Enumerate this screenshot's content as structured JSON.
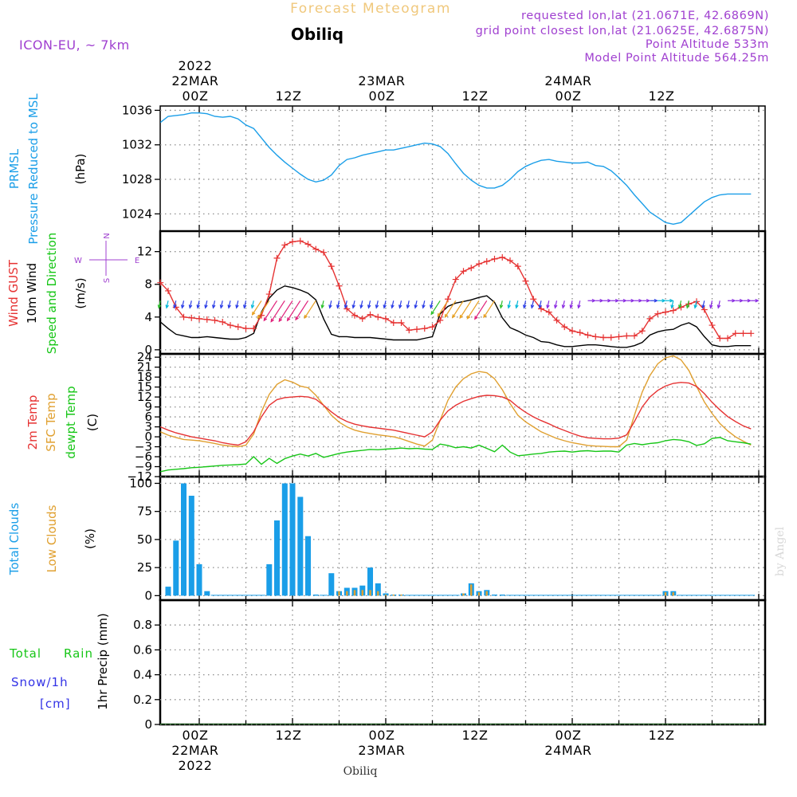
{
  "header": {
    "title": "Forecast Meteogram",
    "location": "Obiliq",
    "model": "ICON-EU, ~ 7km",
    "requested": "requested lon,lat (21.0671E, 42.6869N)",
    "grid_point": "grid point closest lon,lat (21.0625E, 42.6875N)",
    "point_altitude": "Point Altitude 533m",
    "model_altitude": "Model Point Altitude 564.25m",
    "footer_location": "Obiliq",
    "credit": "by Angel"
  },
  "colors": {
    "pressure": "#1a9ee8",
    "gust": "#e63232",
    "wind": "#000000",
    "t2m": "#e63232",
    "sfc": "#e0a030",
    "dewpt": "#17c617",
    "total_clouds": "#1a9ee8",
    "low_clouds": "#e0a030",
    "rain": "#17c617",
    "snow": "#3232e6",
    "title": "#f0c87c",
    "info": "#a040d0"
  },
  "time_axis": {
    "top_labels": [
      {
        "hour": 0,
        "lines": [
          "2022",
          "22MAR",
          "00Z"
        ]
      },
      {
        "hour": 12,
        "lines": [
          "12Z"
        ]
      },
      {
        "hour": 24,
        "lines": [
          "23MAR",
          "00Z"
        ]
      },
      {
        "hour": 36,
        "lines": [
          "12Z"
        ]
      },
      {
        "hour": 48,
        "lines": [
          "24MAR",
          "00Z"
        ]
      },
      {
        "hour": 60,
        "lines": [
          "12Z"
        ]
      }
    ],
    "bottom_labels": [
      {
        "hour": 0,
        "lines": [
          "00Z",
          "22MAR",
          "2022"
        ]
      },
      {
        "hour": 12,
        "lines": [
          "12Z"
        ]
      },
      {
        "hour": 24,
        "lines": [
          "00Z",
          "23MAR"
        ]
      },
      {
        "hour": 36,
        "lines": [
          "12Z"
        ]
      },
      {
        "hour": 48,
        "lines": [
          "00Z",
          "24MAR"
        ]
      },
      {
        "hour": 60,
        "lines": [
          "12Z"
        ]
      }
    ]
  },
  "panels": {
    "pressure": {
      "labels": [
        "PRMSL",
        "Pressure Reduced to MSL",
        "(hPa)"
      ]
    },
    "wind": {
      "labels": [
        "Wind GUST",
        "10m Wind",
        "Speed and Direction",
        "(m/s)"
      ],
      "compass": {
        "n": "N",
        "s": "S",
        "w": "W",
        "e": "E"
      }
    },
    "temp": {
      "labels": [
        "2m Temp",
        "SFC Temp",
        "dewpt Temp",
        "(C)"
      ]
    },
    "clouds": {
      "labels": [
        "Total Clouds",
        "Low Clouds",
        "(%)"
      ]
    },
    "precip": {
      "labels": [
        "Total",
        "Rain",
        "Snow/1h",
        "[cm]",
        "1hr Precip (mm)"
      ]
    }
  },
  "chart_data": [
    {
      "type": "line",
      "title": "PRMSL Pressure Reduced to MSL",
      "ylabel": "hPa",
      "ylim": [
        1022,
        1036.5
      ],
      "yticks": [
        1024,
        1028,
        1032,
        1036
      ],
      "x": [
        -5,
        -4,
        -3,
        -2,
        -1,
        0,
        1,
        2,
        3,
        4,
        5,
        6,
        7,
        8,
        9,
        10,
        11,
        12,
        13,
        14,
        15,
        16,
        17,
        18,
        19,
        20,
        21,
        22,
        23,
        24,
        25,
        26,
        27,
        28,
        29,
        30,
        31,
        32,
        33,
        34,
        35,
        36,
        37,
        38,
        39,
        40,
        41,
        42,
        43,
        44,
        45,
        46,
        47,
        48,
        49,
        50,
        51,
        52,
        53,
        54,
        55,
        56,
        57,
        58,
        59,
        60,
        61,
        62,
        63,
        64,
        65,
        66,
        67,
        68,
        69,
        70,
        71
      ],
      "series": [
        {
          "name": "PRMSL",
          "values": [
            1034.6,
            1035.3,
            1035.4,
            1035.5,
            1035.7,
            1035.7,
            1035.6,
            1035.3,
            1035.2,
            1035.3,
            1035.0,
            1034.3,
            1033.9,
            1032.8,
            1031.7,
            1030.8,
            1030.0,
            1029.3,
            1028.6,
            1028.0,
            1027.7,
            1027.9,
            1028.5,
            1029.6,
            1030.3,
            1030.5,
            1030.8,
            1031.0,
            1031.2,
            1031.4,
            1031.4,
            1031.6,
            1031.8,
            1032.0,
            1032.2,
            1032.1,
            1031.8,
            1031.0,
            1029.8,
            1028.7,
            1027.9,
            1027.3,
            1027.0,
            1027.0,
            1027.3,
            1028.0,
            1028.9,
            1029.5,
            1029.9,
            1030.2,
            1030.3,
            1030.1,
            1030.0,
            1029.9,
            1029.9,
            1030.0,
            1029.6,
            1029.5,
            1029.0,
            1028.2,
            1027.3,
            1026.2,
            1025.2,
            1024.2,
            1023.6,
            1023.0,
            1022.8,
            1023.0,
            1023.8,
            1024.6,
            1025.4,
            1025.9,
            1026.2,
            1026.3,
            1026.3,
            1026.3,
            1026.3
          ]
        }
      ]
    },
    {
      "type": "line",
      "title": "Wind GUST / 10m Wind Speed and Direction",
      "ylabel": "m/s",
      "ylim": [
        -0.5,
        14.5
      ],
      "yticks": [
        0,
        4,
        8,
        12
      ],
      "x": [
        -5,
        -4,
        -3,
        -2,
        -1,
        0,
        1,
        2,
        3,
        4,
        5,
        6,
        7,
        8,
        9,
        10,
        11,
        12,
        13,
        14,
        15,
        16,
        17,
        18,
        19,
        20,
        21,
        22,
        23,
        24,
        25,
        26,
        27,
        28,
        29,
        30,
        31,
        32,
        33,
        34,
        35,
        36,
        37,
        38,
        39,
        40,
        41,
        42,
        43,
        44,
        45,
        46,
        47,
        48,
        49,
        50,
        51,
        52,
        53,
        54,
        55,
        56,
        57,
        58,
        59,
        60,
        61,
        62,
        63,
        64,
        65,
        66,
        67,
        68,
        69,
        70,
        71
      ],
      "series": [
        {
          "name": "Wind GUST",
          "values": [
            8.2,
            7.2,
            5.2,
            4.0,
            3.9,
            3.8,
            3.7,
            3.6,
            3.4,
            3.0,
            2.8,
            2.6,
            2.6,
            4.2,
            6.8,
            11.2,
            12.8,
            13.2,
            13.3,
            12.9,
            12.3,
            11.9,
            10.2,
            7.8,
            5.0,
            4.2,
            3.8,
            4.3,
            4.0,
            3.8,
            3.3,
            3.3,
            2.4,
            2.5,
            2.6,
            2.8,
            3.6,
            6.2,
            8.6,
            9.6,
            10.0,
            10.5,
            10.8,
            11.1,
            11.3,
            10.9,
            10.2,
            8.4,
            6.2,
            5.0,
            4.6,
            3.6,
            2.8,
            2.3,
            2.1,
            1.8,
            1.6,
            1.5,
            1.5,
            1.6,
            1.7,
            1.7,
            2.3,
            3.8,
            4.4,
            4.6,
            4.8,
            5.2,
            5.6,
            5.9,
            4.9,
            3.0,
            1.4,
            1.4,
            2.0,
            2.0,
            2.0
          ]
        },
        {
          "name": "10m Wind",
          "values": [
            3.4,
            2.6,
            1.9,
            1.7,
            1.5,
            1.5,
            1.6,
            1.5,
            1.4,
            1.3,
            1.3,
            1.5,
            2.0,
            4.6,
            6.3,
            7.3,
            7.8,
            7.6,
            7.3,
            6.9,
            6.1,
            3.8,
            1.9,
            1.6,
            1.6,
            1.5,
            1.5,
            1.5,
            1.4,
            1.3,
            1.2,
            1.2,
            1.2,
            1.2,
            1.4,
            1.6,
            4.4,
            5.3,
            5.7,
            5.9,
            6.1,
            6.4,
            6.6,
            5.8,
            3.9,
            2.7,
            2.3,
            1.8,
            1.5,
            1.0,
            0.9,
            0.6,
            0.4,
            0.4,
            0.5,
            0.6,
            0.6,
            0.5,
            0.4,
            0.3,
            0.3,
            0.5,
            0.9,
            1.8,
            2.2,
            2.4,
            2.5,
            3.0,
            3.3,
            2.8,
            1.6,
            0.6,
            0.4,
            0.4,
            0.5,
            0.5,
            0.5
          ]
        }
      ],
      "direction_arrows": [
        {
          "series": "10m Wind",
          "note": "direction arrows plotted at y = 6 m/s"
        }
      ]
    },
    {
      "type": "line",
      "title": "2m Temp / SFC Temp / dewpt Temp",
      "ylabel": "C",
      "ylim": [
        -12,
        25
      ],
      "yticks": [
        -12,
        -9,
        -6,
        -3,
        0,
        3,
        6,
        9,
        12,
        15,
        18,
        21,
        24
      ],
      "x": [
        -5,
        -4,
        -3,
        -2,
        -1,
        0,
        1,
        2,
        3,
        4,
        5,
        6,
        7,
        8,
        9,
        10,
        11,
        12,
        13,
        14,
        15,
        16,
        17,
        18,
        19,
        20,
        21,
        22,
        23,
        24,
        25,
        26,
        27,
        28,
        29,
        30,
        31,
        32,
        33,
        34,
        35,
        36,
        37,
        38,
        39,
        40,
        41,
        42,
        43,
        44,
        45,
        46,
        47,
        48,
        49,
        50,
        51,
        52,
        53,
        54,
        55,
        56,
        57,
        58,
        59,
        60,
        61,
        62,
        63,
        64,
        65,
        66,
        67,
        68,
        69,
        70,
        71
      ],
      "series": [
        {
          "name": "2m Temp",
          "values": [
            3.0,
            2.0,
            1.2,
            0.6,
            0.0,
            -0.4,
            -0.8,
            -1.2,
            -1.8,
            -2.2,
            -2.5,
            -1.5,
            1.5,
            6.0,
            9.5,
            11.2,
            11.8,
            12.0,
            12.2,
            12.0,
            11.3,
            9.5,
            7.5,
            5.8,
            4.6,
            3.8,
            3.3,
            2.9,
            2.6,
            2.3,
            2.0,
            1.5,
            1.0,
            0.5,
            0.0,
            1.5,
            5.0,
            7.8,
            9.5,
            10.7,
            11.5,
            12.2,
            12.5,
            12.4,
            12.0,
            11.0,
            9.0,
            7.4,
            6.0,
            4.9,
            3.9,
            2.8,
            1.9,
            1.0,
            0.2,
            -0.3,
            -0.5,
            -0.6,
            -0.6,
            -0.4,
            0.6,
            4.6,
            9.0,
            12.0,
            14.0,
            15.3,
            16.1,
            16.4,
            16.2,
            15.2,
            13.0,
            10.4,
            8.1,
            6.1,
            4.6,
            3.3,
            2.4
          ]
        },
        {
          "name": "SFC Temp",
          "values": [
            1.5,
            0.5,
            -0.2,
            -0.8,
            -1.0,
            -1.2,
            -1.6,
            -2.0,
            -2.5,
            -2.8,
            -3.0,
            -2.5,
            0.8,
            7.5,
            12.8,
            15.8,
            17.2,
            16.5,
            15.3,
            14.8,
            12.5,
            9.5,
            6.5,
            4.4,
            3.0,
            2.0,
            1.4,
            1.0,
            0.6,
            0.3,
            0.0,
            -0.6,
            -1.4,
            -2.2,
            -2.8,
            -1.0,
            5.0,
            11.0,
            15.0,
            17.5,
            19.0,
            19.7,
            19.3,
            17.5,
            14.2,
            10.0,
            6.5,
            4.5,
            3.0,
            1.5,
            0.5,
            -0.5,
            -1.2,
            -1.8,
            -2.2,
            -2.6,
            -2.8,
            -2.9,
            -3.0,
            -3.0,
            -1.0,
            6.5,
            13.5,
            18.5,
            22.0,
            23.8,
            24.4,
            23.2,
            20.0,
            15.2,
            10.5,
            7.0,
            4.0,
            1.8,
            0.0,
            -1.3,
            -2.5
          ]
        },
        {
          "name": "dewpt Temp",
          "values": [
            -10.5,
            -10.0,
            -9.8,
            -9.6,
            -9.3,
            -9.2,
            -9.0,
            -8.8,
            -8.6,
            -8.5,
            -8.4,
            -8.2,
            -6.0,
            -8.3,
            -6.5,
            -8.0,
            -6.6,
            -5.8,
            -5.2,
            -5.8,
            -5.0,
            -6.2,
            -5.6,
            -5.0,
            -4.6,
            -4.3,
            -4.1,
            -3.8,
            -3.9,
            -3.7,
            -3.6,
            -3.4,
            -3.6,
            -3.5,
            -3.7,
            -3.8,
            -2.2,
            -2.6,
            -3.3,
            -3.0,
            -3.4,
            -2.5,
            -3.5,
            -4.5,
            -2.5,
            -4.6,
            -5.7,
            -5.5,
            -5.2,
            -5.0,
            -4.6,
            -4.4,
            -4.3,
            -4.6,
            -4.3,
            -4.2,
            -4.4,
            -4.3,
            -4.3,
            -4.6,
            -2.5,
            -2.0,
            -2.4,
            -2.0,
            -1.8,
            -1.2,
            -0.8,
            -1.0,
            -1.5,
            -2.6,
            -2.1,
            -0.5,
            -0.2,
            -1.2,
            -1.5,
            -1.8,
            -2.2
          ]
        }
      ]
    },
    {
      "type": "bar",
      "title": "Total Clouds / Low Clouds",
      "ylabel": "%",
      "ylim": [
        -4,
        106
      ],
      "yticks": [
        0,
        25,
        50,
        75,
        100
      ],
      "x": [
        -4,
        -3,
        -2,
        -1,
        0,
        1,
        2,
        3,
        4,
        5,
        6,
        7,
        8,
        9,
        10,
        11,
        12,
        13,
        14,
        15,
        16,
        17,
        18,
        19,
        20,
        21,
        22,
        23,
        24,
        25,
        26,
        27,
        28,
        29,
        30,
        31,
        32,
        33,
        34,
        35,
        36,
        37,
        38,
        39,
        40,
        41,
        42,
        43,
        44,
        45,
        46,
        47,
        48,
        49,
        50,
        51,
        52,
        53,
        54,
        55,
        56,
        57,
        58,
        59,
        60,
        61,
        62,
        63,
        64,
        65,
        66,
        67,
        68,
        69,
        70,
        71
      ],
      "series": [
        {
          "name": "Total Clouds",
          "values": [
            8,
            49,
            100,
            89,
            28,
            4,
            0,
            0,
            0,
            0,
            0,
            0,
            0,
            28,
            67,
            100,
            100,
            88,
            53,
            1,
            0,
            20,
            4,
            7,
            7,
            9,
            25,
            11,
            2,
            1,
            1,
            0,
            0,
            0,
            0,
            0,
            0,
            0,
            2,
            11,
            4,
            5,
            1,
            1,
            0,
            0,
            0,
            0,
            0,
            0,
            0,
            0,
            0,
            0,
            0,
            0,
            0,
            0,
            0,
            0,
            0,
            0,
            0,
            0,
            4,
            4,
            0,
            0,
            0,
            0,
            0,
            0,
            0,
            0,
            0,
            0
          ]
        },
        {
          "name": "Low Clouds",
          "values": [
            0,
            0,
            0,
            0,
            0,
            0,
            0,
            0,
            0,
            0,
            0,
            0,
            0,
            0,
            0,
            0,
            0,
            0,
            0,
            0,
            0,
            0,
            4,
            4,
            5,
            5,
            5,
            4,
            1,
            1,
            1,
            0,
            0,
            0,
            0,
            0,
            0,
            0,
            2,
            10,
            3,
            4,
            0,
            0,
            0,
            0,
            0,
            0,
            0,
            0,
            0,
            0,
            0,
            0,
            0,
            0,
            0,
            0,
            0,
            0,
            0,
            0,
            0,
            0,
            3,
            3,
            0,
            0,
            0,
            0,
            0,
            0,
            0,
            0,
            0,
            0
          ]
        }
      ]
    },
    {
      "type": "bar",
      "title": "1hr Precip",
      "ylabel": "1hr Precip (mm)",
      "ylim": [
        0,
        1.0
      ],
      "yticks": [
        0,
        0.2,
        0.4,
        0.6,
        0.8
      ],
      "series": [
        {
          "name": "Total Rain",
          "values": []
        },
        {
          "name": "Snow/1h",
          "values": []
        }
      ]
    }
  ]
}
